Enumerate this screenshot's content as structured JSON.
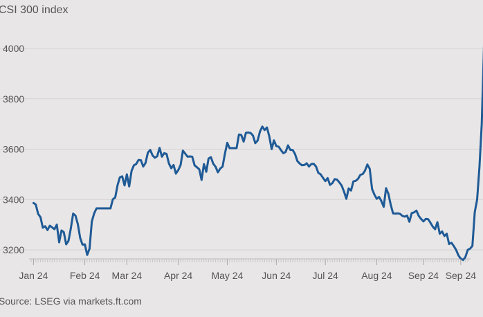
{
  "chart_data": {
    "type": "line",
    "title": "CSI 300 index",
    "source": "Source: LSEG via markets.ft.com",
    "xlabel": "",
    "ylabel": "",
    "ylim": [
      3155,
      4040
    ],
    "y_ticks": [
      3200,
      3400,
      3600,
      3800,
      4000
    ],
    "y_tick_labels": [
      "3200",
      "3400",
      "3600",
      "3800",
      "4000"
    ],
    "x_tick_labels": [
      "Jan 24",
      "Feb 24",
      "Mar 24",
      "Apr 24",
      "May 24",
      "Jun 24",
      "Jul 24",
      "Aug 24",
      "Sep 24",
      "Sep 24"
    ],
    "x_tick_positions": [
      0,
      22,
      40,
      62,
      83,
      104,
      125,
      147,
      167,
      183
    ],
    "x_range": [
      -1,
      186
    ],
    "grid": true,
    "series": [
      {
        "name": "CSI 300 index",
        "color": "#1f5a96",
        "values": [
          3386,
          3380,
          3343,
          3330,
          3288,
          3294,
          3279,
          3296,
          3289,
          3282,
          3300,
          3230,
          3277,
          3270,
          3222,
          3236,
          3286,
          3344,
          3336,
          3302,
          3247,
          3221,
          3222,
          3180,
          3205,
          3313,
          3345,
          3365,
          3365,
          3365,
          3365,
          3365,
          3365,
          3365,
          3401,
          3408,
          3457,
          3488,
          3492,
          3456,
          3500,
          3452,
          3513,
          3536,
          3541,
          3557,
          3556,
          3531,
          3545,
          3586,
          3597,
          3575,
          3566,
          3572,
          3605,
          3570,
          3584,
          3581,
          3543,
          3524,
          3537,
          3503,
          3517,
          3537,
          3594,
          3582,
          3570,
          3571,
          3570,
          3536,
          3528,
          3520,
          3478,
          3541,
          3510,
          3563,
          3568,
          3542,
          3530,
          3508,
          3523,
          3531,
          3583,
          3625,
          3604,
          3604,
          3604,
          3604,
          3658,
          3656,
          3630,
          3665,
          3666,
          3664,
          3654,
          3624,
          3634,
          3670,
          3690,
          3676,
          3686,
          3650,
          3600,
          3635,
          3612,
          3610,
          3596,
          3584,
          3589,
          3615,
          3597,
          3597,
          3581,
          3553,
          3543,
          3536,
          3537,
          3544,
          3531,
          3541,
          3542,
          3531,
          3506,
          3500,
          3486,
          3473,
          3485,
          3458,
          3465,
          3481,
          3479,
          3468,
          3455,
          3431,
          3403,
          3444,
          3436,
          3472,
          3474,
          3482,
          3498,
          3501,
          3515,
          3539,
          3522,
          3442,
          3420,
          3403,
          3410,
          3394,
          3371,
          3445,
          3422,
          3380,
          3345,
          3344,
          3345,
          3343,
          3335,
          3332,
          3336,
          3312,
          3346,
          3349,
          3356,
          3335,
          3323,
          3313,
          3323,
          3322,
          3308,
          3292,
          3282,
          3310,
          3264,
          3273,
          3255,
          3264,
          3223,
          3228,
          3215,
          3200,
          3178,
          3165,
          3160,
          3172,
          3200,
          3205,
          3216,
          3350,
          3400,
          3530,
          3700,
          4022
        ]
      }
    ]
  }
}
